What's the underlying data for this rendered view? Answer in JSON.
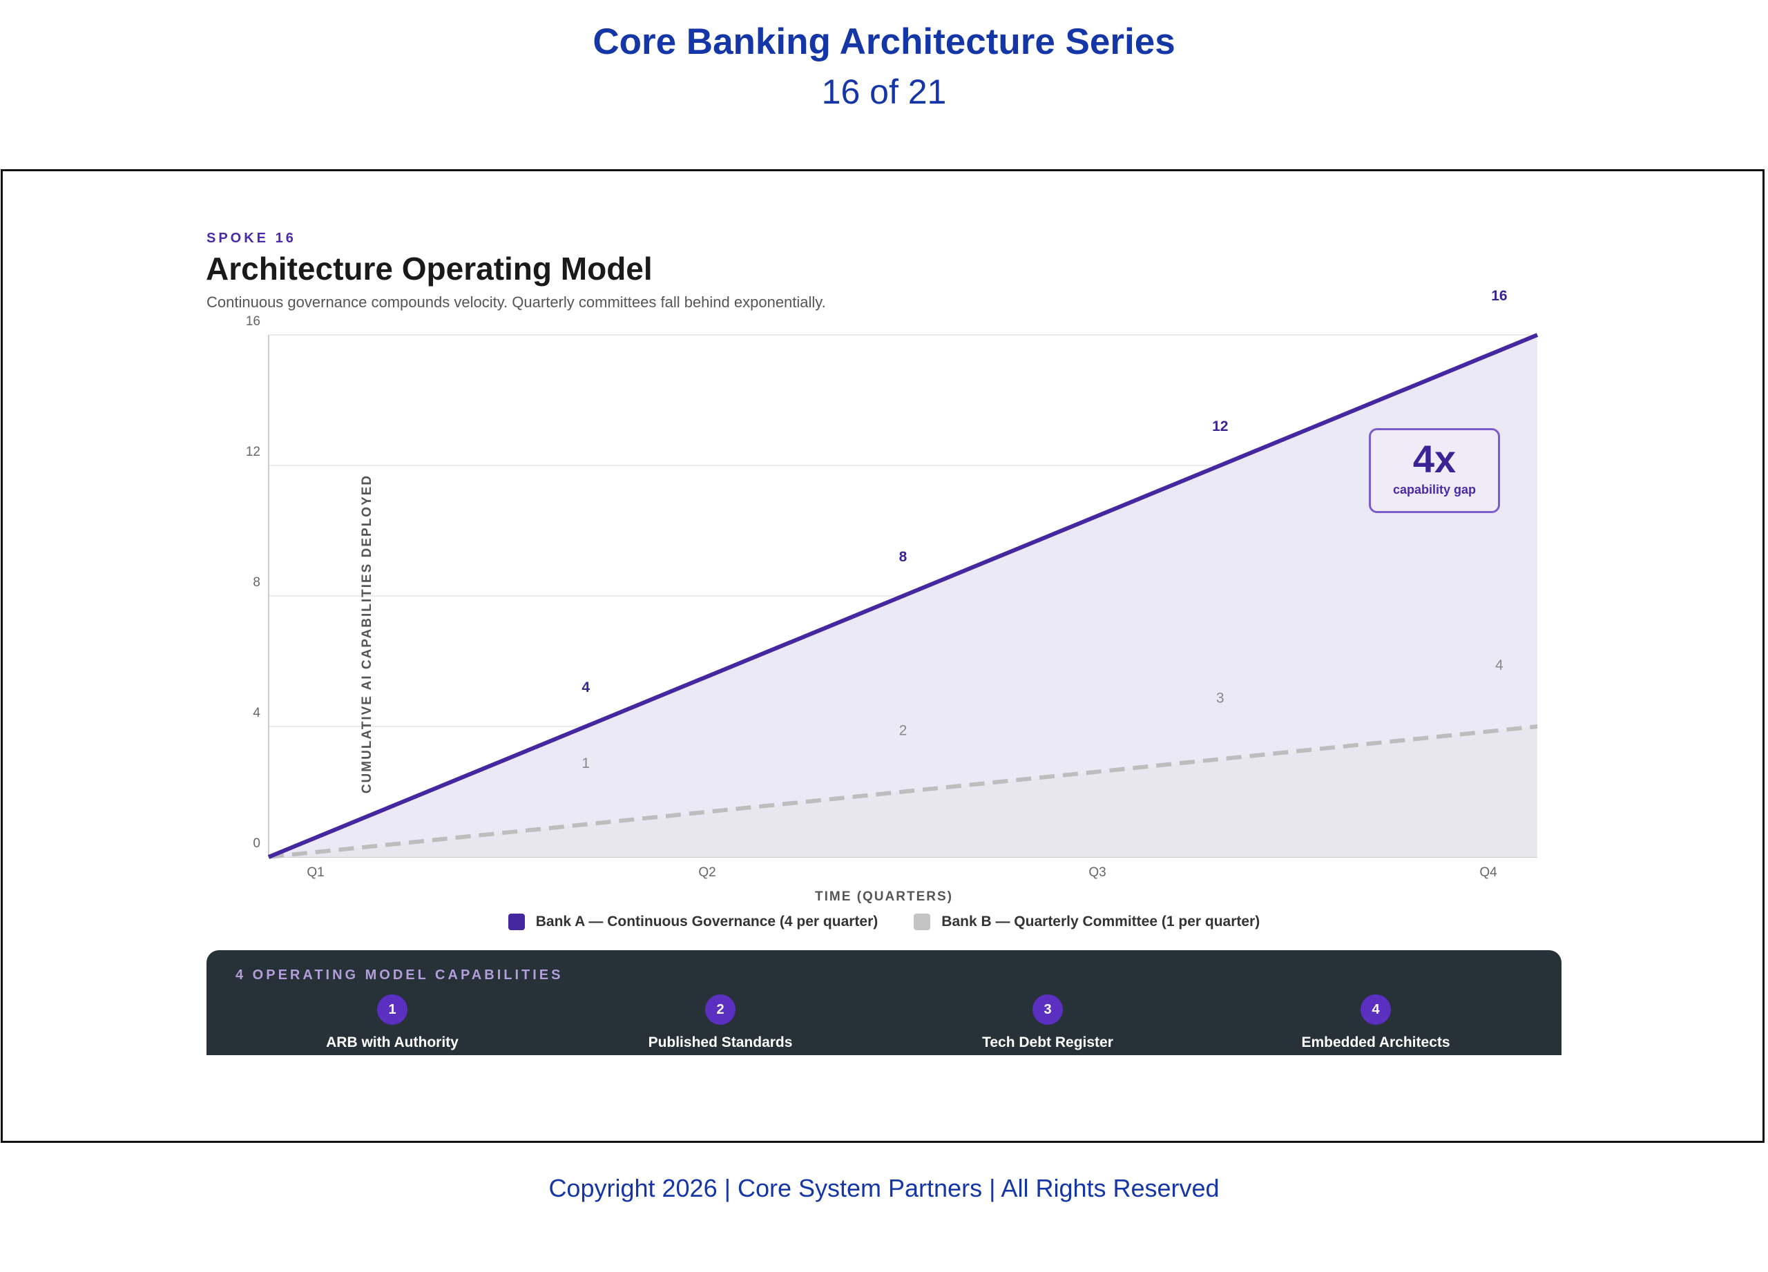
{
  "header": {
    "series_title": "Core Banking Architecture Series",
    "page": "16 of 21"
  },
  "slide": {
    "eyebrow": "SPOKE 16",
    "title": "Architecture Operating Model",
    "subtitle": "Continuous governance compounds velocity. Quarterly committees fall behind exponentially."
  },
  "chart_data": {
    "type": "line",
    "title": "Architecture Operating Model",
    "xlabel": "TIME (QUARTERS)",
    "ylabel": "CUMULATIVE AI CAPABILITIES DEPLOYED",
    "x_ticks": [
      "Q1",
      "Q2",
      "Q3",
      "Q4"
    ],
    "y_ticks": [
      0,
      4,
      8,
      12,
      16
    ],
    "xlim": [
      0,
      4
    ],
    "ylim": [
      0,
      16
    ],
    "grid": true,
    "legend_position": "bottom",
    "series": [
      {
        "name": "Bank A — Continuous Governance (4 per quarter)",
        "color": "#4527a0",
        "x": [
          0,
          1,
          2,
          3,
          4
        ],
        "values": [
          0,
          4,
          8,
          12,
          16
        ],
        "labels": [
          "4",
          "8",
          "12",
          "16"
        ],
        "style": "solid",
        "fill": "#ece9f6"
      },
      {
        "name": "Bank B — Quarterly Committee (1 per quarter)",
        "color": "#bdbdbd",
        "x": [
          0,
          1,
          2,
          3,
          4
        ],
        "values": [
          0,
          1,
          2,
          3,
          4
        ],
        "labels": [
          "1",
          "2",
          "3",
          "4"
        ],
        "style": "dashed"
      }
    ],
    "annotation": {
      "value": "4x",
      "text": "capability gap"
    }
  },
  "capabilities": {
    "title": "4 OPERATING MODEL CAPABILITIES",
    "items": [
      {
        "num": "1",
        "label": "ARB with Authority"
      },
      {
        "num": "2",
        "label": "Published Standards"
      },
      {
        "num": "3",
        "label": "Tech Debt Register"
      },
      {
        "num": "4",
        "label": "Embedded Architects"
      }
    ]
  },
  "footer": {
    "copyright": "Copyright 2026 | Core System Partners | All Rights Reserved"
  }
}
